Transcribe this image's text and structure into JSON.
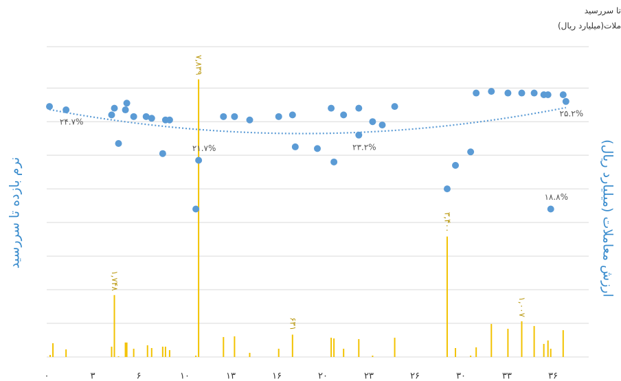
{
  "chart_data": {
    "type": "combo",
    "legend_fragments": [
      "تا سررسید",
      "ملات(میلیارد ریال)"
    ],
    "y_label": "نرم بازده تا سررسید",
    "y2_label": "ارزش معاملات (میلیارد ریال)",
    "xlim": [
      0,
      39.25
    ],
    "xticks": [
      {
        "value": 0,
        "label": "۰"
      },
      {
        "value": 3.33,
        "label": "۳"
      },
      {
        "value": 6.67,
        "label": "۶"
      },
      {
        "value": 10,
        "label": "۱۰"
      },
      {
        "value": 13.33,
        "label": "۱۳"
      },
      {
        "value": 16.67,
        "label": "۱۶"
      },
      {
        "value": 20,
        "label": "۲۰"
      },
      {
        "value": 23.33,
        "label": "۲۳"
      },
      {
        "value": 26.67,
        "label": "۲۶"
      },
      {
        "value": 30,
        "label": "۳۰"
      },
      {
        "value": 33.33,
        "label": "۳۳"
      },
      {
        "value": 36.67,
        "label": "۳۶"
      }
    ],
    "ylim": [
      10,
      28.5
    ],
    "yticks": [
      10,
      12,
      14,
      16,
      18,
      20,
      22,
      24,
      26
    ],
    "y2lim": [
      0,
      8780
    ],
    "grid": true,
    "series": [
      {
        "type": "scatter",
        "color": "#5b9bd5",
        "x": [
          0.2,
          1.4,
          4.7,
          4.9,
          5.2,
          5.7,
          5.8,
          6.3,
          7.2,
          7.6,
          8.6,
          8.9,
          8.4,
          10.8,
          11.0,
          12.8,
          13.6,
          14.7,
          16.8,
          17.8,
          18.0,
          19.6,
          20.6,
          20.8,
          21.5,
          22.6,
          22.6,
          23.6,
          24.3,
          25.2,
          29.0,
          29.6,
          30.7,
          31.1,
          32.2,
          33.4,
          34.4,
          35.3,
          36.0,
          36.3,
          37.4,
          37.6,
          36.5
        ],
        "values": [
          24.9,
          24.7,
          24.4,
          24.8,
          22.7,
          24.7,
          25.1,
          24.3,
          24.3,
          24.2,
          24.1,
          24.1,
          22.1,
          18.8,
          21.7,
          24.3,
          24.3,
          24.1,
          24.3,
          24.4,
          22.5,
          22.4,
          24.8,
          21.6,
          24.4,
          24.8,
          23.2,
          24.0,
          23.8,
          24.9,
          20.0,
          21.4,
          22.2,
          25.7,
          25.8,
          25.7,
          25.7,
          25.7,
          25.6,
          25.6,
          25.6,
          25.2,
          18.8
        ],
        "value_labels": [
          null,
          "۲۴.۷%",
          null,
          null,
          null,
          null,
          null,
          null,
          null,
          null,
          null,
          null,
          null,
          null,
          "۲۱.۷%",
          null,
          null,
          null,
          null,
          null,
          null,
          null,
          null,
          null,
          null,
          null,
          "۲۳.۲%",
          null,
          null,
          null,
          null,
          null,
          null,
          null,
          null,
          null,
          null,
          null,
          null,
          null,
          null,
          "۲۵.۲%",
          "۱۸.۸%"
        ]
      },
      {
        "type": "bar",
        "axis": "y2",
        "color": "#f2c200",
        "x": [
          0.25,
          0.45,
          1.4,
          4.7,
          4.9,
          5.2,
          5.7,
          5.8,
          6.3,
          7.3,
          7.6,
          8.4,
          8.6,
          8.9,
          10.8,
          11.0,
          12.8,
          13.6,
          14.7,
          16.8,
          17.8,
          20.6,
          20.8,
          21.5,
          22.6,
          23.6,
          25.2,
          29.0,
          29.6,
          30.7,
          31.1,
          32.2,
          33.4,
          34.4,
          35.3,
          36.0,
          36.3,
          36.5,
          37.4
        ],
        "values": [
          58,
          388,
          214,
          291,
          1748,
          19,
          408,
          408,
          233,
          330,
          252,
          291,
          291,
          194,
          39,
          7839,
          563,
          583,
          117,
          233,
          631,
          544,
          524,
          233,
          505,
          39,
          544,
          3400,
          252,
          39,
          272,
          932,
          796,
          1007,
          874,
          369,
          466,
          233,
          757
        ],
        "value_labels": [
          null,
          null,
          null,
          null,
          "۱,۷۴۸",
          null,
          null,
          null,
          null,
          null,
          null,
          null,
          null,
          null,
          null,
          "۷,۸۳۹",
          null,
          null,
          null,
          null,
          "۶۳۱",
          null,
          null,
          null,
          null,
          null,
          null,
          "۳,۴۰۰",
          null,
          null,
          null,
          null,
          null,
          "۱,۰۰۷",
          null,
          null,
          null,
          null,
          null
        ]
      }
    ]
  }
}
